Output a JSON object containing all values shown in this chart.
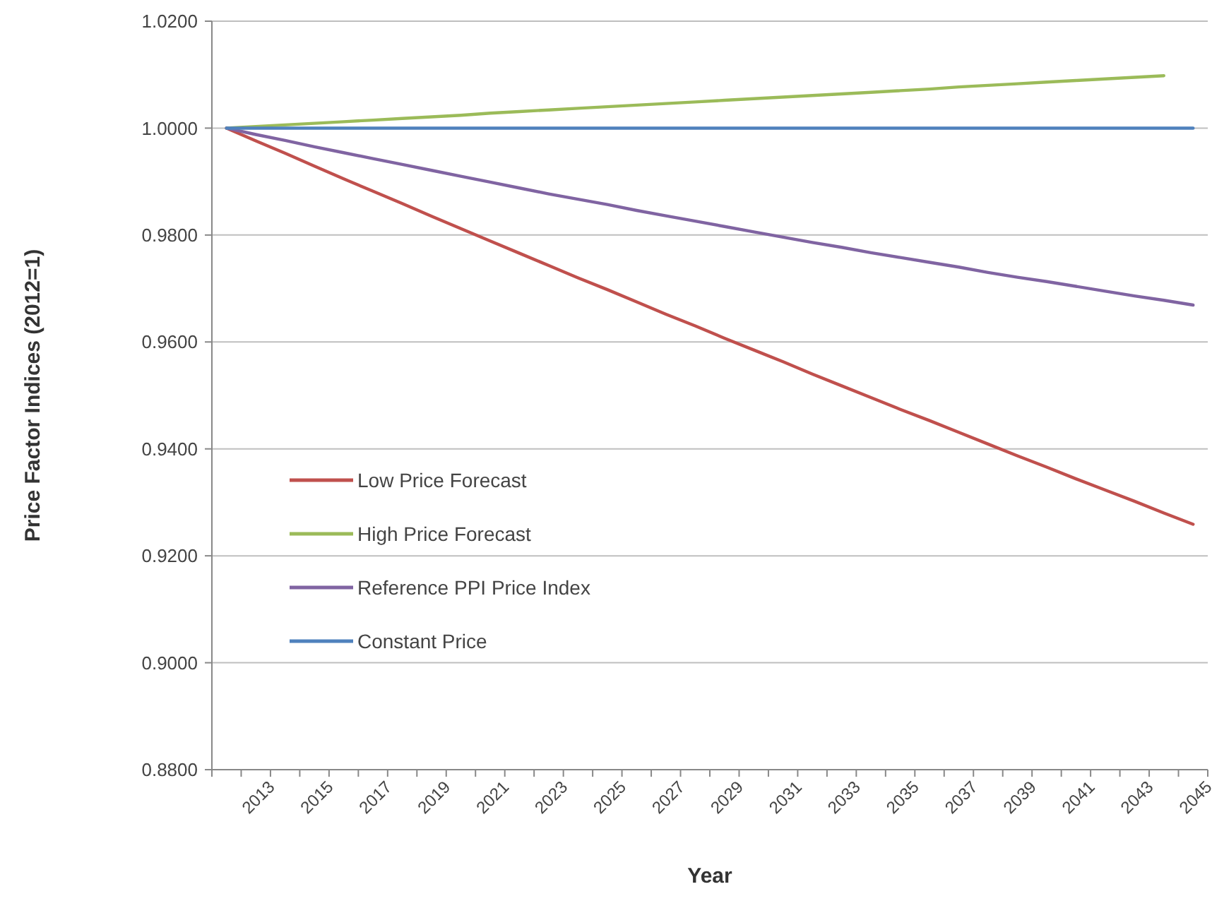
{
  "chart_data": {
    "type": "line",
    "xlabel": "Year",
    "ylabel": "Price Factor Indices (2012=1)",
    "categories": [
      null,
      "2013",
      null,
      "2015",
      null,
      "2017",
      null,
      "2019",
      null,
      "2021",
      null,
      "2023",
      null,
      "2025",
      null,
      "2027",
      null,
      "2029",
      null,
      "2031",
      null,
      "2033",
      null,
      "2035",
      null,
      "2037",
      null,
      "2039",
      null,
      "2041",
      null,
      "2043",
      null,
      "2045"
    ],
    "series": [
      {
        "name": "Low Price Forecast",
        "color": "#c0504d",
        "values": [
          1.0,
          0.9976,
          0.9953,
          0.9929,
          0.9905,
          0.9882,
          0.9859,
          0.9835,
          0.9812,
          0.9789,
          0.9766,
          0.9743,
          0.972,
          0.9698,
          0.9675,
          0.9652,
          0.963,
          0.9607,
          0.9585,
          0.9563,
          0.954,
          0.9518,
          0.9496,
          0.9474,
          0.9453,
          0.9431,
          0.9409,
          0.9387,
          0.9366,
          0.9344,
          0.9323,
          0.9302,
          0.928,
          0.9259
        ]
      },
      {
        "name": "High Price Forecast",
        "color": "#9bbb59",
        "values": [
          1.0,
          1.0003,
          1.0006,
          1.0009,
          1.0012,
          1.0015,
          1.0018,
          1.0021,
          1.0024,
          1.0028,
          1.0031,
          1.0034,
          1.0037,
          1.004,
          1.0043,
          1.0046,
          1.0049,
          1.0052,
          1.0055,
          1.0058,
          1.0061,
          1.0064,
          1.0067,
          1.007,
          1.0073,
          1.0077,
          1.008,
          1.0083,
          1.0086,
          1.0089,
          1.0092,
          1.0095,
          1.0098,
          null
        ]
      },
      {
        "name": "Reference PPI Price Index",
        "color": "#8064a2",
        "values": [
          1.0,
          0.9988,
          0.9977,
          0.9965,
          0.9954,
          0.9943,
          0.9932,
          0.9921,
          0.991,
          0.9899,
          0.9888,
          0.9877,
          0.9867,
          0.9857,
          0.9846,
          0.9836,
          0.9826,
          0.9816,
          0.9806,
          0.9796,
          0.9786,
          0.9777,
          0.9767,
          0.9758,
          0.9749,
          0.974,
          0.973,
          0.9721,
          0.9713,
          0.9704,
          0.9695,
          0.9686,
          0.9678,
          0.9669
        ]
      },
      {
        "name": "Constant Price",
        "color": "#4f81bd",
        "values": [
          1,
          1,
          1,
          1,
          1,
          1,
          1,
          1,
          1,
          1,
          1,
          1,
          1,
          1,
          1,
          1,
          1,
          1,
          1,
          1,
          1,
          1,
          1,
          1,
          1,
          1,
          1,
          1,
          1,
          1,
          1,
          1,
          1,
          1
        ]
      }
    ],
    "ylim": [
      0.88,
      1.02
    ],
    "yticks": [
      {
        "value": 0.88,
        "label": "0.8800"
      },
      {
        "value": 0.9,
        "label": "0.9000"
      },
      {
        "value": 0.92,
        "label": "0.9200"
      },
      {
        "value": 0.94,
        "label": "0.9400"
      },
      {
        "value": 0.96,
        "label": "0.9600"
      },
      {
        "value": 0.98,
        "label": "0.9800"
      },
      {
        "value": 1.0,
        "label": "1.0000"
      },
      {
        "value": 1.02,
        "label": "1.0200"
      }
    ],
    "grid": "y",
    "legend": "bottom left",
    "marker": "none",
    "line_style": "solid"
  }
}
